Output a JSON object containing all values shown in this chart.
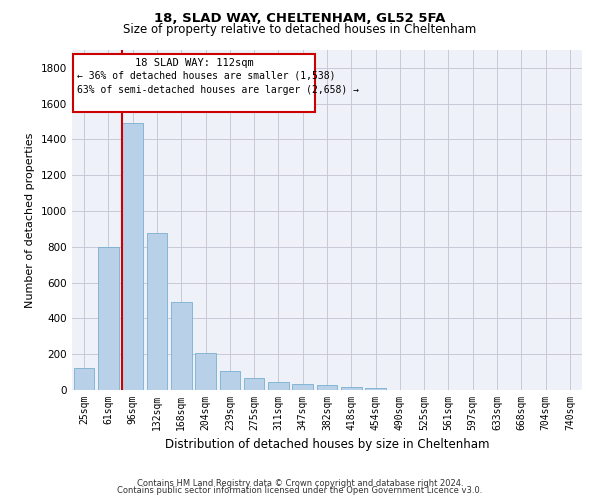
{
  "title1": "18, SLAD WAY, CHELTENHAM, GL52 5FA",
  "title2": "Size of property relative to detached houses in Cheltenham",
  "xlabel": "Distribution of detached houses by size in Cheltenham",
  "ylabel": "Number of detached properties",
  "categories": [
    "25sqm",
    "61sqm",
    "96sqm",
    "132sqm",
    "168sqm",
    "204sqm",
    "239sqm",
    "275sqm",
    "311sqm",
    "347sqm",
    "382sqm",
    "418sqm",
    "454sqm",
    "490sqm",
    "525sqm",
    "561sqm",
    "597sqm",
    "633sqm",
    "668sqm",
    "704sqm",
    "740sqm"
  ],
  "values": [
    125,
    800,
    1490,
    880,
    490,
    205,
    105,
    65,
    42,
    35,
    27,
    15,
    10,
    0,
    0,
    0,
    0,
    0,
    0,
    0,
    0
  ],
  "bar_color": "#b8d0e8",
  "bar_edgecolor": "#7aaed0",
  "vline_x": 2,
  "annotation_text_line1": "18 SLAD WAY: 112sqm",
  "annotation_text_line2": "← 36% of detached houses are smaller (1,538)",
  "annotation_text_line3": "63% of semi-detached houses are larger (2,658) →",
  "annotation_box_color": "#cc0000",
  "ylim": [
    0,
    1900
  ],
  "yticks": [
    0,
    200,
    400,
    600,
    800,
    1000,
    1200,
    1400,
    1600,
    1800
  ],
  "footer1": "Contains HM Land Registry data © Crown copyright and database right 2024.",
  "footer2": "Contains public sector information licensed under the Open Government Licence v3.0.",
  "plot_bg_color": "#eef2f8"
}
